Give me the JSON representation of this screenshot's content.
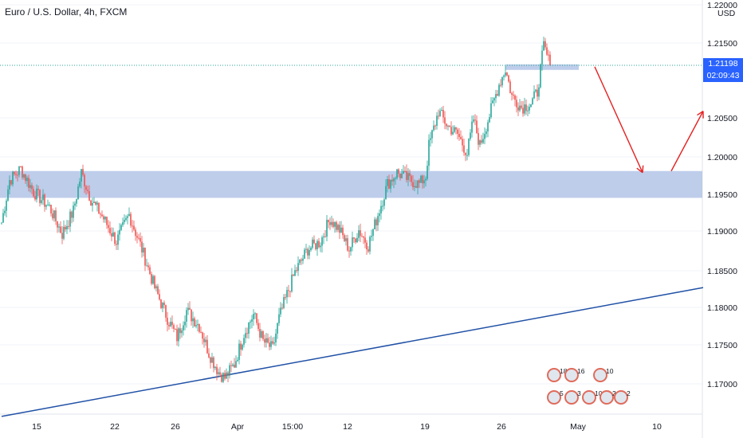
{
  "header": {
    "title": "Euro / U.S. Dollar, 4h, FXCM"
  },
  "currency": "USD",
  "current_price": {
    "value": "1.21198",
    "countdown": "02:09:43"
  },
  "colors": {
    "up": "#26a69a",
    "down": "#ef5350",
    "zone": "#b2c4e6",
    "trendline": "#2151a6",
    "arrow": "#e52222",
    "price_line": "#26a69a",
    "price_box": "#2962ff"
  },
  "event_badges": [
    {
      "label": "18"
    },
    {
      "label": "16"
    },
    {
      "label": "10"
    },
    {
      "label": "5"
    },
    {
      "label": "3"
    },
    {
      "label": "102"
    },
    {
      "label": "2"
    },
    {
      "label": "2"
    }
  ],
  "chart_data": {
    "type": "candlestick",
    "title": "Euro / U.S. Dollar, 4h, FXCM",
    "y_axis": {
      "ticks": [
        "1.17000",
        "1.17500",
        "1.18000",
        "1.18500",
        "1.19000",
        "1.19500",
        "1.20000",
        "1.20500",
        "1.21500",
        "1.22000"
      ],
      "range": [
        1.1665,
        1.2205
      ]
    },
    "x_axis": {
      "ticks": [
        "15",
        "22",
        "26",
        "Apr",
        "15:00",
        "12",
        "19",
        "26",
        "May",
        "10"
      ]
    },
    "close_path": [
      [
        0,
        1.1915
      ],
      [
        5,
        1.197
      ],
      [
        12,
        1.1985
      ],
      [
        20,
        1.1955
      ],
      [
        30,
        1.1935
      ],
      [
        38,
        1.19
      ],
      [
        45,
        1.193
      ],
      [
        50,
        1.198
      ],
      [
        56,
        1.1945
      ],
      [
        64,
        1.192
      ],
      [
        72,
        1.189
      ],
      [
        80,
        1.1925
      ],
      [
        88,
        1.188
      ],
      [
        96,
        1.183
      ],
      [
        104,
        1.179
      ],
      [
        110,
        1.1765
      ],
      [
        116,
        1.18
      ],
      [
        124,
        1.178
      ],
      [
        130,
        1.1745
      ],
      [
        136,
        1.172
      ],
      [
        140,
        1.1712
      ],
      [
        146,
        1.173
      ],
      [
        152,
        1.177
      ],
      [
        158,
        1.1795
      ],
      [
        164,
        1.176
      ],
      [
        170,
        1.175
      ],
      [
        174,
        1.179
      ],
      [
        178,
        1.1815
      ],
      [
        184,
        1.185
      ],
      [
        192,
        1.188
      ],
      [
        200,
        1.189
      ],
      [
        206,
        1.192
      ],
      [
        212,
        1.1905
      ],
      [
        218,
        1.188
      ],
      [
        224,
        1.1905
      ],
      [
        230,
        1.1885
      ],
      [
        236,
        1.1925
      ],
      [
        242,
        1.1965
      ],
      [
        248,
        1.198
      ],
      [
        256,
        1.197
      ],
      [
        262,
        1.1965
      ],
      [
        266,
        1.1975
      ],
      [
        268,
        1.2015
      ],
      [
        274,
        1.206
      ],
      [
        280,
        1.204
      ],
      [
        286,
        1.203
      ],
      [
        292,
        1.2005
      ],
      [
        296,
        1.205
      ],
      [
        300,
        1.2015
      ],
      [
        306,
        1.2055
      ],
      [
        312,
        1.2095
      ],
      [
        316,
        1.2115
      ],
      [
        320,
        1.208
      ],
      [
        326,
        1.2065
      ],
      [
        332,
        1.207
      ],
      [
        336,
        1.2085
      ],
      [
        340,
        1.2145
      ],
      [
        344,
        1.212
      ]
    ],
    "resistance_zone": {
      "low": 1.2112,
      "high": 1.2118,
      "from_bar": 316,
      "to_bar": 362
    },
    "support_zone": {
      "low": 1.1947,
      "high": 1.1982
    },
    "trendline": {
      "from": [
        0,
        1.1662
      ],
      "to": [
        440,
        1.183
      ]
    },
    "arrows": [
      {
        "from": [
          372,
          1.2118
        ],
        "to": [
          402,
          1.198
        ]
      },
      {
        "from": [
          420,
          1.1982
        ],
        "to": [
          440,
          1.206
        ]
      }
    ],
    "grid": true
  }
}
